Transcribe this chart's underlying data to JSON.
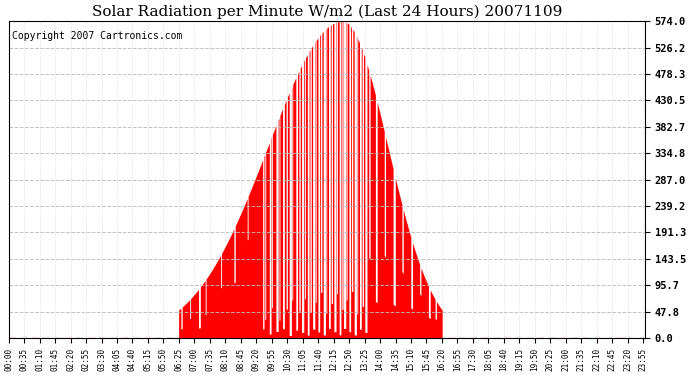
{
  "title": "Solar Radiation per Minute W/m2 (Last 24 Hours) 20071109",
  "copyright_text": "Copyright 2007 Cartronics.com",
  "yticks": [
    0.0,
    47.8,
    95.7,
    143.5,
    191.3,
    239.2,
    287.0,
    334.8,
    382.7,
    430.5,
    478.3,
    526.2,
    574.0
  ],
  "ymax": 574.0,
  "ymin": 0.0,
  "bar_color": "#FF0000",
  "dashed_line_color": "#FF0000",
  "grid_color": "#BBBBBB",
  "background_color": "#FFFFFF",
  "plot_bg_color": "#FFFFFF",
  "title_fontsize": 11,
  "copyright_fontsize": 7,
  "sunrise_min": 385,
  "sunset_min": 980,
  "peak_min": 755,
  "peak_val": 574.0
}
